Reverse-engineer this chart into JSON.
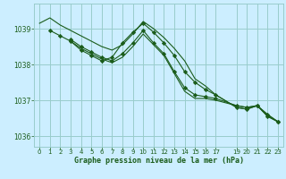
{
  "background_color": "#cceeff",
  "grid_color": "#99cccc",
  "line_color": "#1a5c1a",
  "marker_color": "#1a5c1a",
  "title": "Graphe pression niveau de la mer (hPa)",
  "xlim": [
    -0.5,
    23.5
  ],
  "ylim": [
    1035.7,
    1039.7
  ],
  "yticks": [
    1036,
    1037,
    1038,
    1039
  ],
  "xticks": [
    0,
    1,
    2,
    3,
    4,
    5,
    6,
    7,
    8,
    9,
    10,
    11,
    12,
    13,
    14,
    15,
    16,
    17,
    19,
    20,
    21,
    22,
    23
  ],
  "series": [
    {
      "x": [
        0,
        1,
        2,
        3,
        4,
        5,
        6,
        7,
        8,
        9,
        10,
        11,
        12,
        13,
        14,
        15,
        16,
        17,
        19,
        20,
        21,
        22,
        23
      ],
      "y": [
        1039.15,
        1039.3,
        1039.1,
        1038.95,
        1038.8,
        1038.65,
        1038.5,
        1038.4,
        1038.55,
        1038.85,
        1039.2,
        1039.0,
        1038.75,
        1038.45,
        1038.1,
        1037.6,
        1037.4,
        1037.15,
        1036.8,
        1036.75,
        1036.85,
        1036.55,
        1036.4
      ],
      "with_markers": false
    },
    {
      "x": [
        1,
        2,
        3,
        4,
        5,
        6,
        7,
        8,
        9,
        10,
        11,
        12,
        13,
        14,
        15,
        16,
        17,
        19,
        20,
        21,
        22,
        23
      ],
      "y": [
        1038.95,
        1038.8,
        1038.65,
        1038.4,
        1038.25,
        1038.1,
        1038.2,
        1038.6,
        1038.9,
        1039.15,
        1038.9,
        1038.6,
        1038.25,
        1037.8,
        1037.5,
        1037.3,
        1037.15,
        1036.8,
        1036.75,
        1036.85,
        1036.55,
        1036.4
      ],
      "with_markers": true
    },
    {
      "x": [
        3,
        4,
        5,
        6,
        7,
        8,
        9,
        10,
        11,
        12,
        13,
        14,
        15,
        16,
        17,
        19,
        20,
        21,
        22,
        23
      ],
      "y": [
        1038.7,
        1038.5,
        1038.35,
        1038.2,
        1038.1,
        1038.3,
        1038.6,
        1038.95,
        1038.6,
        1038.3,
        1037.8,
        1037.35,
        1037.15,
        1037.1,
        1037.05,
        1036.85,
        1036.8,
        1036.85,
        1036.6,
        1036.4
      ],
      "with_markers": true
    },
    {
      "x": [
        3,
        4,
        5,
        6,
        7,
        8,
        9,
        10,
        11,
        12,
        13,
        14,
        15,
        16,
        17,
        19,
        20,
        21,
        22,
        23
      ],
      "y": [
        1038.65,
        1038.45,
        1038.3,
        1038.15,
        1038.05,
        1038.2,
        1038.5,
        1038.85,
        1038.55,
        1038.25,
        1037.75,
        1037.25,
        1037.05,
        1037.05,
        1037.0,
        1036.85,
        1036.8,
        1036.85,
        1036.6,
        1036.4
      ],
      "with_markers": false
    }
  ]
}
